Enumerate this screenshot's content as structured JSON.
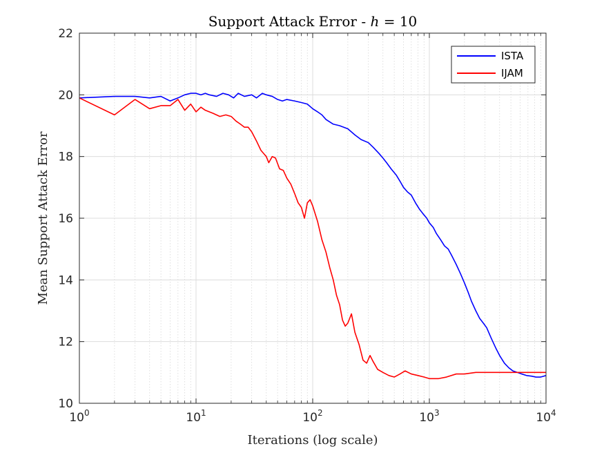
{
  "chart_data": {
    "type": "line",
    "title": "Support Attack Error - h = 10",
    "title_parts": {
      "prefix": "Support Attack Error - ",
      "var": "h",
      "suffix": " = 10"
    },
    "xlabel": "Iterations (log scale)",
    "ylabel": "Mean Support Attack Error",
    "xscale": "log",
    "xlim": [
      1,
      10000
    ],
    "ylim": [
      10,
      22
    ],
    "x_ticks": [
      {
        "value": 1,
        "base": "10",
        "exp": "0"
      },
      {
        "value": 10,
        "base": "10",
        "exp": "1"
      },
      {
        "value": 100,
        "base": "10",
        "exp": "2"
      },
      {
        "value": 1000,
        "base": "10",
        "exp": "3"
      },
      {
        "value": 10000,
        "base": "10",
        "exp": "4"
      }
    ],
    "y_ticks": [
      10,
      12,
      14,
      16,
      18,
      20,
      22
    ],
    "grid": true,
    "minor_grid_x": true,
    "legend_position": "top-right",
    "series": [
      {
        "name": "ISTA",
        "color": "#0000ff",
        "points": [
          [
            1,
            19.9
          ],
          [
            2,
            19.95
          ],
          [
            3,
            19.95
          ],
          [
            4,
            19.9
          ],
          [
            5,
            19.95
          ],
          [
            6,
            19.8
          ],
          [
            7,
            19.9
          ],
          [
            8,
            20.0
          ],
          [
            9,
            20.05
          ],
          [
            10,
            20.05
          ],
          [
            11,
            20.0
          ],
          [
            12,
            20.05
          ],
          [
            13,
            20.0
          ],
          [
            15,
            19.95
          ],
          [
            17,
            20.05
          ],
          [
            19,
            20.0
          ],
          [
            21,
            19.9
          ],
          [
            23,
            20.05
          ],
          [
            26,
            19.95
          ],
          [
            30,
            20.0
          ],
          [
            33,
            19.9
          ],
          [
            37,
            20.05
          ],
          [
            40,
            20.0
          ],
          [
            45,
            19.95
          ],
          [
            50,
            19.85
          ],
          [
            55,
            19.8
          ],
          [
            60,
            19.85
          ],
          [
            70,
            19.8
          ],
          [
            80,
            19.75
          ],
          [
            90,
            19.7
          ],
          [
            100,
            19.55
          ],
          [
            110,
            19.45
          ],
          [
            120,
            19.35
          ],
          [
            130,
            19.2
          ],
          [
            150,
            19.05
          ],
          [
            170,
            19.0
          ],
          [
            200,
            18.9
          ],
          [
            230,
            18.7
          ],
          [
            260,
            18.55
          ],
          [
            300,
            18.45
          ],
          [
            330,
            18.3
          ],
          [
            370,
            18.1
          ],
          [
            400,
            17.95
          ],
          [
            430,
            17.8
          ],
          [
            470,
            17.6
          ],
          [
            520,
            17.4
          ],
          [
            560,
            17.2
          ],
          [
            600,
            17.0
          ],
          [
            650,
            16.85
          ],
          [
            700,
            16.75
          ],
          [
            760,
            16.5
          ],
          [
            820,
            16.3
          ],
          [
            880,
            16.15
          ],
          [
            950,
            16.0
          ],
          [
            1000,
            15.85
          ],
          [
            1080,
            15.7
          ],
          [
            1150,
            15.5
          ],
          [
            1250,
            15.3
          ],
          [
            1350,
            15.1
          ],
          [
            1450,
            15.0
          ],
          [
            1550,
            14.8
          ],
          [
            1700,
            14.5
          ],
          [
            1850,
            14.2
          ],
          [
            2000,
            13.9
          ],
          [
            2150,
            13.6
          ],
          [
            2300,
            13.3
          ],
          [
            2500,
            13.0
          ],
          [
            2700,
            12.75
          ],
          [
            2900,
            12.6
          ],
          [
            3100,
            12.45
          ],
          [
            3400,
            12.1
          ],
          [
            3700,
            11.8
          ],
          [
            4000,
            11.55
          ],
          [
            4400,
            11.3
          ],
          [
            4800,
            11.15
          ],
          [
            5200,
            11.05
          ],
          [
            5700,
            11.0
          ],
          [
            6200,
            10.95
          ],
          [
            6800,
            10.9
          ],
          [
            7500,
            10.88
          ],
          [
            8200,
            10.85
          ],
          [
            9000,
            10.85
          ],
          [
            10000,
            10.9
          ]
        ]
      },
      {
        "name": "IJAM",
        "color": "#ff0000",
        "points": [
          [
            1,
            19.9
          ],
          [
            2,
            19.35
          ],
          [
            3,
            19.85
          ],
          [
            4,
            19.55
          ],
          [
            5,
            19.65
          ],
          [
            6,
            19.65
          ],
          [
            7,
            19.85
          ],
          [
            8,
            19.5
          ],
          [
            9,
            19.7
          ],
          [
            10,
            19.45
          ],
          [
            11,
            19.6
          ],
          [
            12,
            19.5
          ],
          [
            14,
            19.4
          ],
          [
            16,
            19.3
          ],
          [
            18,
            19.35
          ],
          [
            20,
            19.3
          ],
          [
            22,
            19.15
          ],
          [
            24,
            19.05
          ],
          [
            26,
            18.95
          ],
          [
            28,
            18.95
          ],
          [
            30,
            18.8
          ],
          [
            33,
            18.5
          ],
          [
            36,
            18.2
          ],
          [
            40,
            18.0
          ],
          [
            42,
            17.8
          ],
          [
            45,
            18.0
          ],
          [
            48,
            17.95
          ],
          [
            52,
            17.6
          ],
          [
            56,
            17.55
          ],
          [
            60,
            17.3
          ],
          [
            65,
            17.1
          ],
          [
            70,
            16.8
          ],
          [
            75,
            16.5
          ],
          [
            80,
            16.35
          ],
          [
            85,
            16.0
          ],
          [
            90,
            16.5
          ],
          [
            95,
            16.6
          ],
          [
            100,
            16.4
          ],
          [
            110,
            15.9
          ],
          [
            120,
            15.3
          ],
          [
            130,
            14.9
          ],
          [
            140,
            14.4
          ],
          [
            150,
            14.0
          ],
          [
            160,
            13.5
          ],
          [
            170,
            13.2
          ],
          [
            180,
            12.7
          ],
          [
            190,
            12.5
          ],
          [
            200,
            12.6
          ],
          [
            215,
            12.9
          ],
          [
            230,
            12.3
          ],
          [
            250,
            11.9
          ],
          [
            270,
            11.4
          ],
          [
            290,
            11.3
          ],
          [
            310,
            11.55
          ],
          [
            330,
            11.35
          ],
          [
            360,
            11.1
          ],
          [
            400,
            11.0
          ],
          [
            450,
            10.9
          ],
          [
            500,
            10.85
          ],
          [
            560,
            10.95
          ],
          [
            620,
            11.05
          ],
          [
            700,
            10.95
          ],
          [
            800,
            10.9
          ],
          [
            900,
            10.85
          ],
          [
            1000,
            10.8
          ],
          [
            1200,
            10.8
          ],
          [
            1400,
            10.85
          ],
          [
            1700,
            10.95
          ],
          [
            2000,
            10.95
          ],
          [
            2500,
            11.0
          ],
          [
            3000,
            11.0
          ],
          [
            4000,
            11.0
          ],
          [
            5000,
            11.0
          ],
          [
            6000,
            11.0
          ],
          [
            8000,
            11.0
          ],
          [
            10000,
            11.0
          ]
        ]
      }
    ]
  }
}
